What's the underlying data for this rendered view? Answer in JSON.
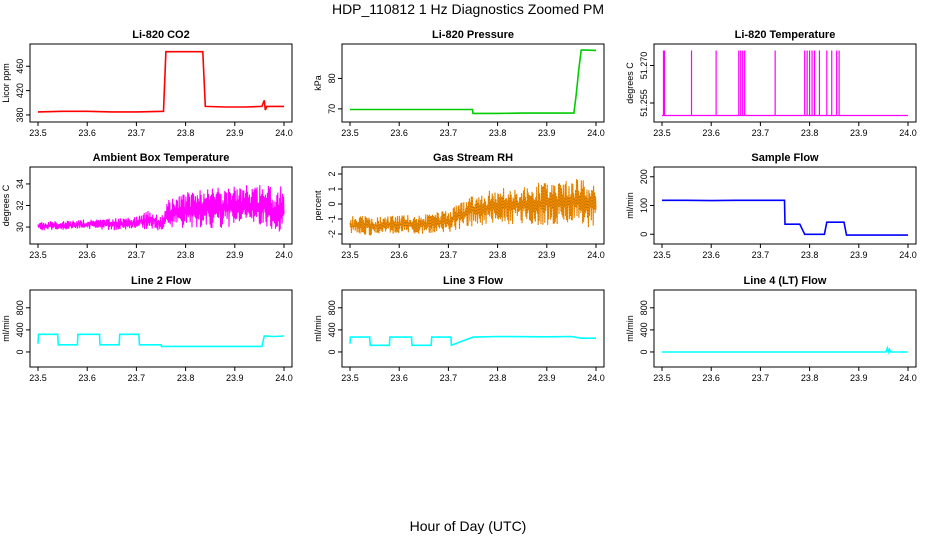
{
  "page": {
    "title": "HDP_110812  1 Hz Diagnostics Zoomed PM",
    "xlabel": "Hour of Day (UTC)"
  },
  "chart_data": [
    {
      "type": "line",
      "title": "Li-820 CO2",
      "ylabel": "Licor ppm",
      "color": "#ff0000",
      "xlim": [
        23.5,
        24.0
      ],
      "ylim": [
        375,
        490
      ],
      "xticks": [
        "23.5",
        "23.6",
        "23.7",
        "23.8",
        "23.9",
        "24.0"
      ],
      "yticks": [
        380,
        420,
        460
      ],
      "x": [
        23.5,
        23.55,
        23.6,
        23.65,
        23.7,
        23.755,
        23.76,
        23.8,
        23.835,
        23.84,
        23.88,
        23.92,
        23.955,
        23.96,
        23.962,
        23.965,
        23.98,
        24.0
      ],
      "y": [
        385,
        386,
        386,
        385,
        385,
        386,
        484,
        484,
        484,
        394,
        393,
        393,
        394,
        404,
        388,
        394,
        394,
        394
      ]
    },
    {
      "type": "line",
      "title": "Li-820 Pressure",
      "ylabel": "kPa",
      "color": "#00cc00",
      "xlim": [
        23.5,
        24.0
      ],
      "ylim": [
        67,
        90
      ],
      "xticks": [
        "23.5",
        "23.6",
        "23.7",
        "23.8",
        "23.9",
        "24.0"
      ],
      "yticks": [
        70,
        80
      ],
      "x": [
        23.5,
        23.6,
        23.7,
        23.749,
        23.75,
        23.8,
        23.85,
        23.9,
        23.955,
        23.96,
        23.965,
        23.97,
        23.98,
        24.0
      ],
      "y": [
        69.8,
        69.8,
        69.8,
        69.8,
        68.5,
        68.5,
        68.6,
        68.6,
        68.6,
        75,
        83,
        89.3,
        89.3,
        89.2
      ]
    },
    {
      "type": "line",
      "title": "Li-820 Temperature",
      "ylabel": "degrees C",
      "color": "#ff00ff",
      "xlim": [
        23.5,
        24.0
      ],
      "ylim": [
        51.249,
        51.277
      ],
      "xticks": [
        "23.5",
        "23.6",
        "23.7",
        "23.8",
        "23.9",
        "24.0"
      ],
      "yticks": [
        "51.255",
        "51.270"
      ],
      "baseline": 51.25,
      "spike_top": 51.276,
      "spikes": [
        23.503,
        23.505,
        23.56,
        23.61,
        23.656,
        23.66,
        23.664,
        23.668,
        23.73,
        23.79,
        23.795,
        23.8,
        23.805,
        23.81,
        23.82,
        23.835,
        23.845,
        23.855,
        23.86
      ]
    },
    {
      "type": "line",
      "title": "Ambient Box Temperature",
      "ylabel": "degrees C",
      "color": "#ff00ff",
      "xlim": [
        23.5,
        24.0
      ],
      "ylim": [
        28.8,
        35.2
      ],
      "xticks": [
        "23.5",
        "23.6",
        "23.7",
        "23.8",
        "23.9",
        "24.0"
      ],
      "yticks": [
        30,
        32,
        34
      ],
      "x": [
        23.5,
        23.55,
        23.6,
        23.65,
        23.7,
        23.73,
        23.75,
        23.76,
        23.8,
        23.85,
        23.9,
        23.95,
        23.97,
        23.98,
        23.99,
        24.0
      ],
      "y_low": [
        29.7,
        29.7,
        29.8,
        29.7,
        29.8,
        29.8,
        29.6,
        29.8,
        29.9,
        29.8,
        29.9,
        29.8,
        30.0,
        29.6,
        29.5,
        29.6
      ],
      "y_high": [
        30.5,
        30.6,
        30.7,
        30.8,
        31.0,
        31.7,
        31.0,
        32.4,
        33.2,
        33.8,
        33.8,
        34.0,
        34.5,
        33.0,
        34.0,
        33.5
      ]
    },
    {
      "type": "line",
      "title": "Gas Stream RH",
      "ylabel": "percent",
      "color": "#ff8c00",
      "xlim": [
        23.5,
        24.0
      ],
      "ylim": [
        -2.4,
        2.2
      ],
      "xticks": [
        "23.5",
        "23.6",
        "23.7",
        "23.8",
        "23.9",
        "24.0"
      ],
      "yticks": [
        -2,
        -1,
        0,
        1,
        2
      ],
      "x": [
        23.5,
        23.55,
        23.6,
        23.65,
        23.7,
        23.75,
        23.8,
        23.85,
        23.9,
        23.95,
        23.97,
        23.98,
        23.99,
        24.0
      ],
      "y_low": [
        -2.1,
        -2.1,
        -2.0,
        -2.0,
        -1.9,
        -1.5,
        -1.3,
        -1.4,
        -1.4,
        -1.3,
        -1.4,
        -1.6,
        -1.5,
        -1.4
      ],
      "y_high": [
        -0.8,
        -0.8,
        -0.7,
        -0.7,
        -0.4,
        0.7,
        1.0,
        1.3,
        1.5,
        1.6,
        1.8,
        1.7,
        1.6,
        1.8
      ]
    },
    {
      "type": "line",
      "title": "Sample Flow",
      "ylabel": "ml/min",
      "color": "#0000ff",
      "xlim": [
        23.5,
        24.0
      ],
      "ylim": [
        -20,
        220
      ],
      "xticks": [
        "23.5",
        "23.6",
        "23.7",
        "23.8",
        "23.9",
        "24.0"
      ],
      "yticks": [
        0,
        100,
        200
      ],
      "x": [
        23.5,
        23.55,
        23.6,
        23.65,
        23.7,
        23.749,
        23.75,
        23.78,
        23.79,
        23.83,
        23.835,
        23.87,
        23.875,
        23.95,
        24.0
      ],
      "y": [
        118,
        118,
        117,
        118,
        118,
        118,
        35,
        35,
        0,
        0,
        42,
        42,
        -3,
        -3,
        -3
      ]
    },
    {
      "type": "line",
      "title": "Line 2 Flow",
      "ylabel": "ml/min",
      "color": "#00ffff",
      "xlim": [
        23.5,
        24.0
      ],
      "ylim": [
        -200,
        1050
      ],
      "xticks": [
        "23.5",
        "23.6",
        "23.7",
        "23.8",
        "23.9",
        "24.0"
      ],
      "yticks": [
        0,
        400,
        800
      ],
      "x": [
        23.5,
        23.501,
        23.54,
        23.541,
        23.58,
        23.581,
        23.625,
        23.626,
        23.665,
        23.666,
        23.705,
        23.706,
        23.75,
        23.751,
        23.955,
        23.96,
        23.98,
        24.0
      ],
      "y": [
        150,
        320,
        320,
        130,
        130,
        320,
        320,
        130,
        130,
        320,
        320,
        130,
        130,
        100,
        100,
        290,
        280,
        290
      ]
    },
    {
      "type": "line",
      "title": "Line 3 Flow",
      "ylabel": "ml/min",
      "color": "#00ffff",
      "xlim": [
        23.5,
        24.0
      ],
      "ylim": [
        -200,
        1050
      ],
      "xticks": [
        "23.5",
        "23.6",
        "23.7",
        "23.8",
        "23.9",
        "24.0"
      ],
      "yticks": [
        0,
        400,
        800
      ],
      "x": [
        23.5,
        23.501,
        23.54,
        23.541,
        23.58,
        23.581,
        23.625,
        23.626,
        23.665,
        23.666,
        23.705,
        23.706,
        23.75,
        23.8,
        23.9,
        23.95,
        23.97,
        24.0
      ],
      "y": [
        150,
        270,
        270,
        120,
        120,
        270,
        270,
        120,
        120,
        270,
        270,
        120,
        270,
        280,
        275,
        280,
        250,
        250
      ]
    },
    {
      "type": "line",
      "title": "Line 4 (LT) Flow",
      "ylabel": "ml/min",
      "color": "#00ffff",
      "xlim": [
        23.5,
        24.0
      ],
      "ylim": [
        -200,
        1050
      ],
      "xticks": [
        "23.5",
        "23.6",
        "23.7",
        "23.8",
        "23.9",
        "24.0"
      ],
      "yticks": [
        0,
        400,
        800
      ],
      "x": [
        23.5,
        23.6,
        23.7,
        23.8,
        23.9,
        23.955,
        23.958,
        23.96,
        23.962,
        23.965,
        24.0
      ],
      "y": [
        0,
        0,
        0,
        0,
        0,
        0,
        70,
        0,
        50,
        0,
        0
      ]
    }
  ]
}
